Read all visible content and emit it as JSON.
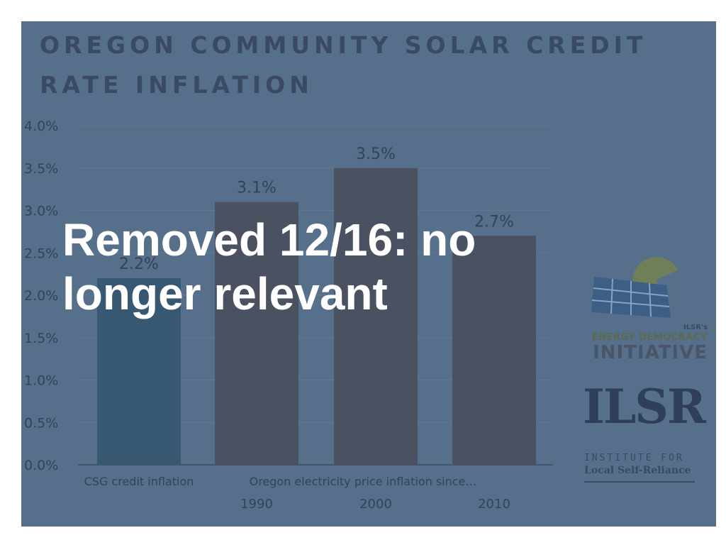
{
  "slide": {
    "title_lines": [
      "OREGON COMMUNITY SOLAR CREDIT",
      "RATE INFLATION"
    ],
    "overlay_lines": [
      "Removed 12/16: no",
      "longer relevant"
    ],
    "colors": {
      "panel": "#566f8a",
      "title": "#3a4a62",
      "overlay": "#ffffff",
      "bar_csg": "#385872",
      "bar_oregon": "#4a5262"
    }
  },
  "chart_data": {
    "type": "bar",
    "categories": [
      "CSG credit inflation",
      "1990",
      "2000",
      "2010"
    ],
    "group_label": "Oregon electricity price inflation since…",
    "values": [
      2.2,
      3.1,
      3.5,
      2.7
    ],
    "value_labels": [
      "2.2%",
      "3.1%",
      "3.5%",
      "2.7%"
    ],
    "yticks": [
      "0.0%",
      "0.5%",
      "1.0%",
      "1.5%",
      "2.0%",
      "2.5%",
      "3.0%",
      "3.5%",
      "4.0%"
    ],
    "ylim": [
      0,
      4.0
    ],
    "grid": true,
    "title": "",
    "xlabel": "",
    "ylabel": ""
  },
  "logos": {
    "edi_small": "ILSR's",
    "edi_line1": "ENERGY DEMOCRACY",
    "edi_line2": "INITIATIVE",
    "ilsr_mark": "ILSR",
    "ilsr_line1": "INSTITUTE FOR",
    "ilsr_line2": "Local Self-Reliance"
  }
}
